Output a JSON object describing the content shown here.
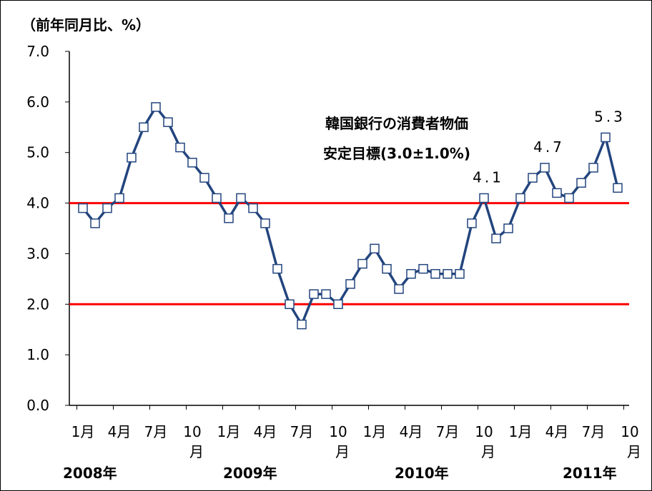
{
  "chart_data": {
    "type": "line",
    "y_axis_label": "（前年同月比、%）",
    "annotation": [
      "韓国銀行の消費者物価",
      "安定目標(3.0±1.0%)"
    ],
    "target_lines": [
      2,
      4
    ],
    "target_color": "#ff0000",
    "categories": [
      "1月",
      null,
      null,
      "4月",
      null,
      null,
      "7月",
      null,
      null,
      "10\n月",
      null,
      null,
      "1月",
      null,
      null,
      "4月",
      null,
      null,
      "7月",
      null,
      null,
      "10\n月",
      null,
      null,
      "1月",
      null,
      null,
      "4月",
      null,
      null,
      "7月",
      null,
      null,
      "10\n月",
      null,
      null,
      "1月",
      null,
      null,
      "4月",
      null,
      null,
      "7月",
      null,
      null,
      "10\n月"
    ],
    "years": [
      "2008年",
      "2009年",
      "2010年",
      "2011年"
    ],
    "series": [
      {
        "name": "消費者物価",
        "color": "#23457e",
        "values": [
          3.9,
          3.6,
          3.9,
          4.1,
          4.9,
          5.5,
          5.9,
          5.6,
          5.1,
          4.8,
          4.5,
          4.1,
          3.7,
          4.1,
          3.9,
          3.6,
          2.7,
          2.0,
          1.6,
          2.2,
          2.2,
          2.0,
          2.4,
          2.8,
          3.1,
          2.7,
          2.3,
          2.6,
          2.7,
          2.6,
          2.6,
          2.6,
          3.6,
          4.1,
          3.3,
          3.5,
          4.1,
          4.5,
          4.7,
          4.2,
          4.1,
          4.4,
          4.7,
          5.3,
          4.3,
          null
        ],
        "value_labels": [
          null,
          null,
          null,
          null,
          null,
          null,
          null,
          null,
          null,
          null,
          null,
          null,
          null,
          null,
          null,
          null,
          null,
          null,
          null,
          null,
          null,
          null,
          null,
          null,
          null,
          null,
          null,
          null,
          null,
          null,
          null,
          null,
          null,
          "4.1",
          null,
          null,
          null,
          null,
          "4.7",
          null,
          null,
          null,
          null,
          "5.3",
          null,
          null
        ]
      }
    ],
    "ylim": [
      0,
      7
    ],
    "yticks": [
      {
        "value": 0,
        "label": "0.0"
      },
      {
        "value": 1,
        "label": "1.0"
      },
      {
        "value": 2,
        "label": "2.0"
      },
      {
        "value": 3,
        "label": "3.0"
      },
      {
        "value": 4,
        "label": "4.0"
      },
      {
        "value": 5,
        "label": "5.0"
      },
      {
        "value": 6,
        "label": "6.0"
      },
      {
        "value": 7,
        "label": "7.0"
      }
    ]
  }
}
